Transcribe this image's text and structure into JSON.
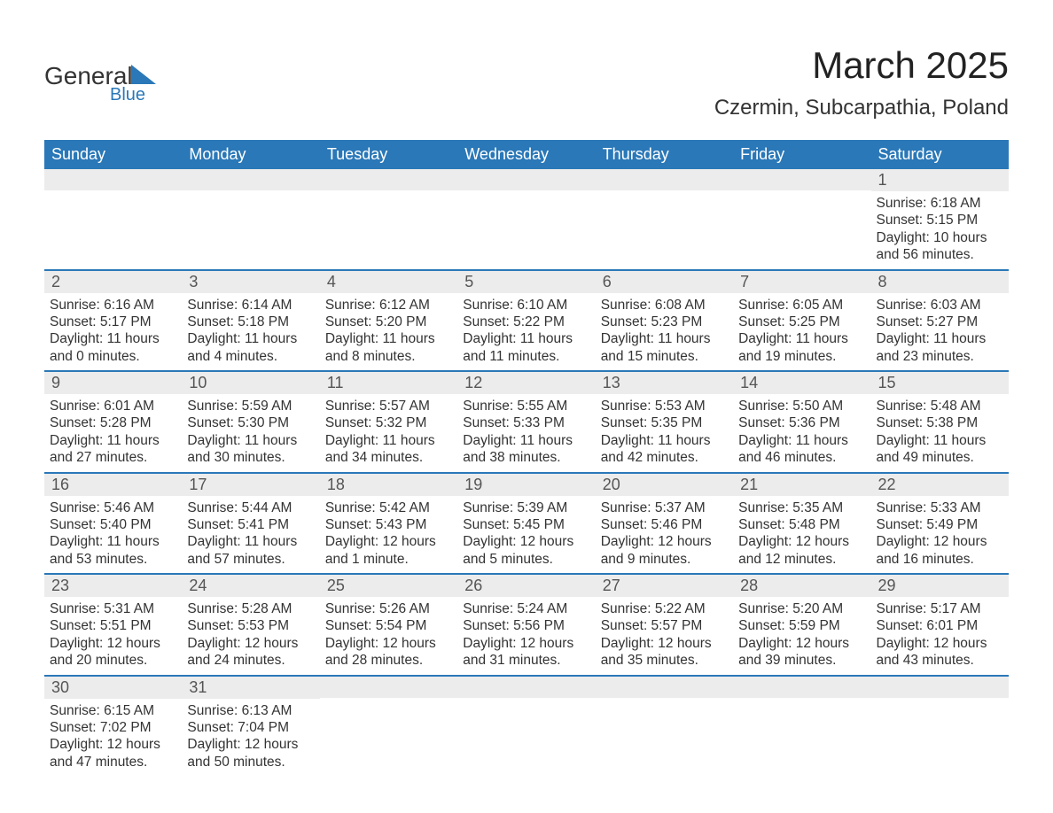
{
  "logo": {
    "word1": "General",
    "word2": "Blue"
  },
  "title": "March 2025",
  "location": "Czermin, Subcarpathia, Poland",
  "colors": {
    "header_bg": "#2a78b8",
    "header_text": "#ffffff",
    "daynum_bg": "#ececec",
    "row_border": "#2a78b8",
    "body_text": "#333333",
    "page_bg": "#ffffff"
  },
  "typography": {
    "title_fontsize": 42,
    "location_fontsize": 24,
    "header_fontsize": 18,
    "daynum_fontsize": 18,
    "body_fontsize": 15.5,
    "font_family": "Arial"
  },
  "weekdays": [
    "Sunday",
    "Monday",
    "Tuesday",
    "Wednesday",
    "Thursday",
    "Friday",
    "Saturday"
  ],
  "labels": {
    "sunrise": "Sunrise",
    "sunset": "Sunset",
    "daylight": "Daylight"
  },
  "grid": {
    "columns": 7,
    "rows": 6,
    "leading_blanks": 6,
    "trailing_blanks": 5
  },
  "days": [
    {
      "n": 1,
      "sunrise": "6:18 AM",
      "sunset": "5:15 PM",
      "dl_h": 10,
      "dl_m": 56
    },
    {
      "n": 2,
      "sunrise": "6:16 AM",
      "sunset": "5:17 PM",
      "dl_h": 11,
      "dl_m": 0
    },
    {
      "n": 3,
      "sunrise": "6:14 AM",
      "sunset": "5:18 PM",
      "dl_h": 11,
      "dl_m": 4
    },
    {
      "n": 4,
      "sunrise": "6:12 AM",
      "sunset": "5:20 PM",
      "dl_h": 11,
      "dl_m": 8
    },
    {
      "n": 5,
      "sunrise": "6:10 AM",
      "sunset": "5:22 PM",
      "dl_h": 11,
      "dl_m": 11
    },
    {
      "n": 6,
      "sunrise": "6:08 AM",
      "sunset": "5:23 PM",
      "dl_h": 11,
      "dl_m": 15
    },
    {
      "n": 7,
      "sunrise": "6:05 AM",
      "sunset": "5:25 PM",
      "dl_h": 11,
      "dl_m": 19
    },
    {
      "n": 8,
      "sunrise": "6:03 AM",
      "sunset": "5:27 PM",
      "dl_h": 11,
      "dl_m": 23
    },
    {
      "n": 9,
      "sunrise": "6:01 AM",
      "sunset": "5:28 PM",
      "dl_h": 11,
      "dl_m": 27
    },
    {
      "n": 10,
      "sunrise": "5:59 AM",
      "sunset": "5:30 PM",
      "dl_h": 11,
      "dl_m": 30
    },
    {
      "n": 11,
      "sunrise": "5:57 AM",
      "sunset": "5:32 PM",
      "dl_h": 11,
      "dl_m": 34
    },
    {
      "n": 12,
      "sunrise": "5:55 AM",
      "sunset": "5:33 PM",
      "dl_h": 11,
      "dl_m": 38
    },
    {
      "n": 13,
      "sunrise": "5:53 AM",
      "sunset": "5:35 PM",
      "dl_h": 11,
      "dl_m": 42
    },
    {
      "n": 14,
      "sunrise": "5:50 AM",
      "sunset": "5:36 PM",
      "dl_h": 11,
      "dl_m": 46
    },
    {
      "n": 15,
      "sunrise": "5:48 AM",
      "sunset": "5:38 PM",
      "dl_h": 11,
      "dl_m": 49
    },
    {
      "n": 16,
      "sunrise": "5:46 AM",
      "sunset": "5:40 PM",
      "dl_h": 11,
      "dl_m": 53
    },
    {
      "n": 17,
      "sunrise": "5:44 AM",
      "sunset": "5:41 PM",
      "dl_h": 11,
      "dl_m": 57
    },
    {
      "n": 18,
      "sunrise": "5:42 AM",
      "sunset": "5:43 PM",
      "dl_h": 12,
      "dl_m": 1
    },
    {
      "n": 19,
      "sunrise": "5:39 AM",
      "sunset": "5:45 PM",
      "dl_h": 12,
      "dl_m": 5
    },
    {
      "n": 20,
      "sunrise": "5:37 AM",
      "sunset": "5:46 PM",
      "dl_h": 12,
      "dl_m": 9
    },
    {
      "n": 21,
      "sunrise": "5:35 AM",
      "sunset": "5:48 PM",
      "dl_h": 12,
      "dl_m": 12
    },
    {
      "n": 22,
      "sunrise": "5:33 AM",
      "sunset": "5:49 PM",
      "dl_h": 12,
      "dl_m": 16
    },
    {
      "n": 23,
      "sunrise": "5:31 AM",
      "sunset": "5:51 PM",
      "dl_h": 12,
      "dl_m": 20
    },
    {
      "n": 24,
      "sunrise": "5:28 AM",
      "sunset": "5:53 PM",
      "dl_h": 12,
      "dl_m": 24
    },
    {
      "n": 25,
      "sunrise": "5:26 AM",
      "sunset": "5:54 PM",
      "dl_h": 12,
      "dl_m": 28
    },
    {
      "n": 26,
      "sunrise": "5:24 AM",
      "sunset": "5:56 PM",
      "dl_h": 12,
      "dl_m": 31
    },
    {
      "n": 27,
      "sunrise": "5:22 AM",
      "sunset": "5:57 PM",
      "dl_h": 12,
      "dl_m": 35
    },
    {
      "n": 28,
      "sunrise": "5:20 AM",
      "sunset": "5:59 PM",
      "dl_h": 12,
      "dl_m": 39
    },
    {
      "n": 29,
      "sunrise": "5:17 AM",
      "sunset": "6:01 PM",
      "dl_h": 12,
      "dl_m": 43
    },
    {
      "n": 30,
      "sunrise": "6:15 AM",
      "sunset": "7:02 PM",
      "dl_h": 12,
      "dl_m": 47
    },
    {
      "n": 31,
      "sunrise": "6:13 AM",
      "sunset": "7:04 PM",
      "dl_h": 12,
      "dl_m": 50
    }
  ]
}
